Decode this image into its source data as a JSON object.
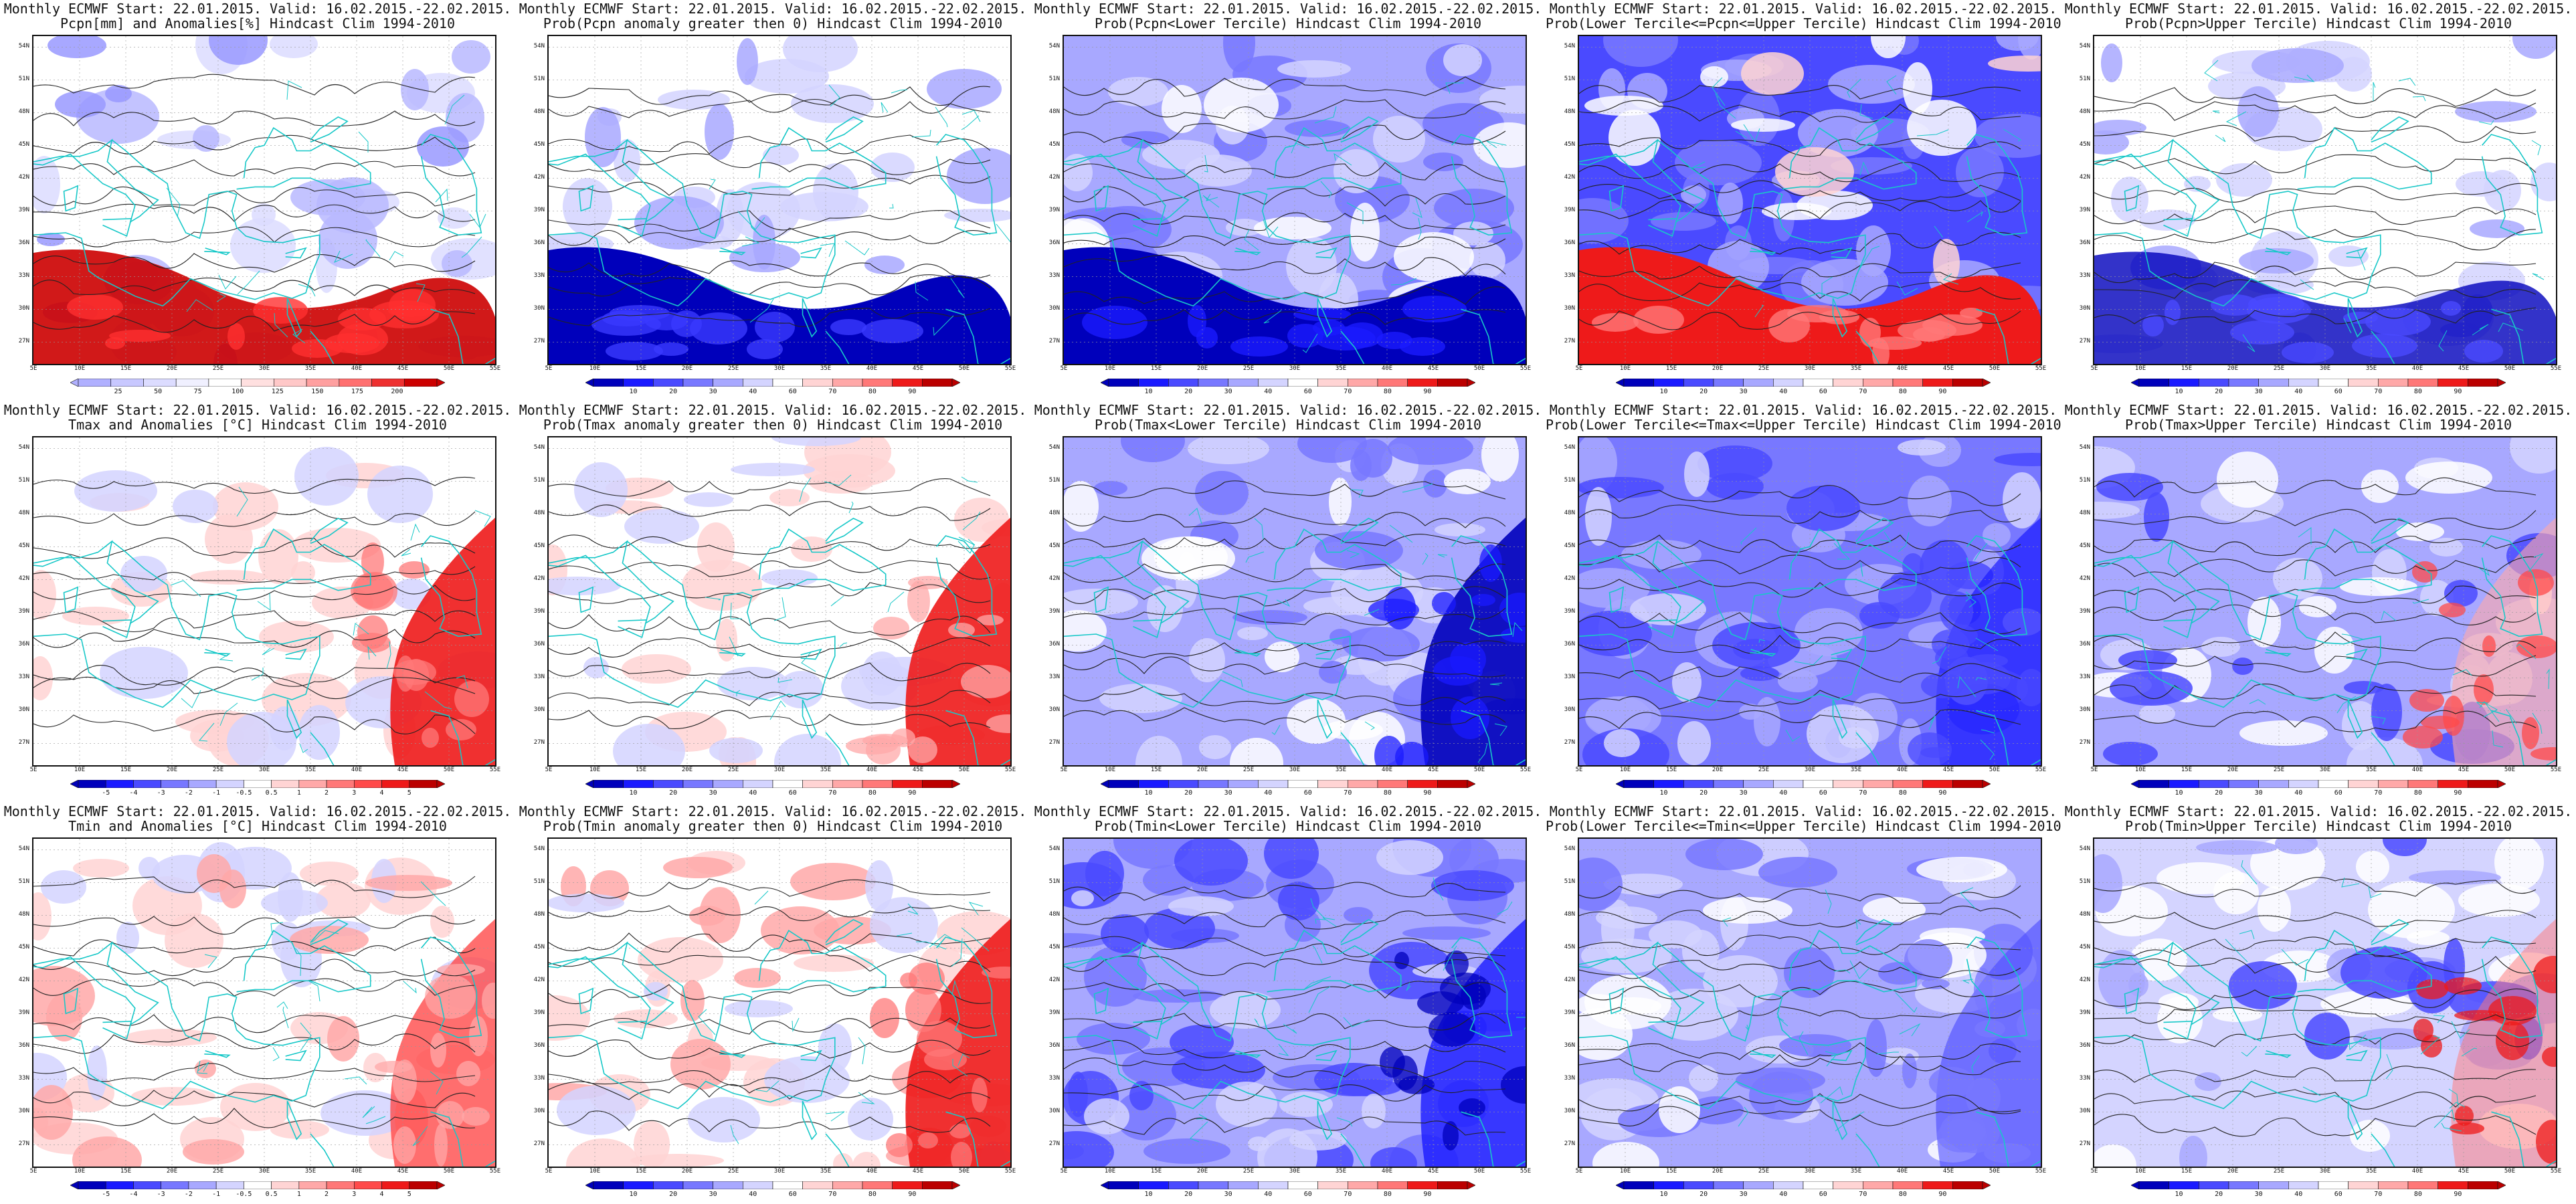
{
  "figure": {
    "lat_labels": [
      "54N",
      "51N",
      "48N",
      "45N",
      "42N",
      "39N",
      "36N",
      "33N",
      "30N",
      "27N"
    ],
    "lon_labels": [
      "5E",
      "10E",
      "15E",
      "20E",
      "25E",
      "30E",
      "35E",
      "40E",
      "45E",
      "50E",
      "55E"
    ]
  },
  "colorbars": {
    "pcpn_anom": {
      "colors": [
        "#b0b0ff",
        "#c8c8ff",
        "#dcdcff",
        "#f0f0ff",
        "#ffffff",
        "#ffe0e0",
        "#ffc8c8",
        "#ffa0a0",
        "#ff7070",
        "#ee3030",
        "#cc0000"
      ],
      "labels": [
        "25",
        "50",
        "75",
        "100",
        "125",
        "150",
        "175",
        "200"
      ]
    },
    "tanom": {
      "colors": [
        "#0000bb",
        "#1a1aff",
        "#4a4aff",
        "#7878ff",
        "#a8a8ff",
        "#d4d4ff",
        "#ffffff",
        "#ffd4d4",
        "#ffa8a8",
        "#ff7878",
        "#ff4a4a",
        "#ee1a1a",
        "#bb0000"
      ],
      "labels": [
        "-5",
        "-4",
        "-3",
        "-2",
        "-1",
        "-0.5",
        "0.5",
        "1",
        "2",
        "3",
        "4",
        "5"
      ]
    },
    "prob": {
      "colors": [
        "#0000bb",
        "#1a1aff",
        "#4a4aff",
        "#7878ff",
        "#a8a8ff",
        "#d4d4ff",
        "#ffffff",
        "#ffd4d4",
        "#ffa8a8",
        "#ff7878",
        "#ee1a1a",
        "#bb0000"
      ],
      "labels": [
        "10",
        "20",
        "30",
        "40",
        "60",
        "70",
        "80",
        "90"
      ]
    }
  },
  "panels": [
    {
      "title1": "Monthly ECMWF Start: 22.01.2015. Valid: 16.02.2015.-22.02.2015.",
      "title2": "Pcpn[mm] and Anomalies[%] Hindcast Clim 1994-2010",
      "colorbar": "pcpn_anom"
    },
    {
      "title1": "Monthly ECMWF Start: 22.01.2015. Valid: 16.02.2015.-22.02.2015.",
      "title2": "Prob(Pcpn anomaly greater then 0) Hindcast Clim 1994-2010",
      "colorbar": "prob"
    },
    {
      "title1": "Monthly ECMWF Start: 22.01.2015. Valid: 16.02.2015.-22.02.2015.",
      "title2": "Prob(Pcpn<Lower Tercile) Hindcast Clim 1994-2010",
      "colorbar": "prob"
    },
    {
      "title1": "Monthly ECMWF Start: 22.01.2015. Valid: 16.02.2015.-22.02.2015.",
      "title2": "Prob(Lower Tercile<=Pcpn<=Upper Tercile) Hindcast Clim 1994-2010",
      "colorbar": "prob"
    },
    {
      "title1": "Monthly ECMWF Start: 22.01.2015. Valid: 16.02.2015.-22.02.2015.",
      "title2": "Prob(Pcpn>Upper Tercile) Hindcast Clim 1994-2010",
      "colorbar": "prob"
    },
    {
      "title1": "Monthly ECMWF Start: 22.01.2015. Valid: 16.02.2015.-22.02.2015.",
      "title2": "Tmax and Anomalies [°C] Hindcast Clim 1994-2010",
      "colorbar": "tanom"
    },
    {
      "title1": "Monthly ECMWF Start: 22.01.2015. Valid: 16.02.2015.-22.02.2015.",
      "title2": "Prob(Tmax anomaly greater then 0) Hindcast Clim 1994-2010",
      "colorbar": "prob"
    },
    {
      "title1": "Monthly ECMWF Start: 22.01.2015. Valid: 16.02.2015.-22.02.2015.",
      "title2": "Prob(Tmax<Lower Tercile) Hindcast Clim 1994-2010",
      "colorbar": "prob"
    },
    {
      "title1": "Monthly ECMWF Start: 22.01.2015. Valid: 16.02.2015.-22.02.2015.",
      "title2": "Prob(Lower Tercile<=Tmax<=Upper Tercile) Hindcast Clim 1994-2010",
      "colorbar": "prob"
    },
    {
      "title1": "Monthly ECMWF Start: 22.01.2015. Valid: 16.02.2015.-22.02.2015.",
      "title2": "Prob(Tmax>Upper Tercile) Hindcast Clim 1994-2010",
      "colorbar": "prob"
    },
    {
      "title1": "Monthly ECMWF Start: 22.01.2015. Valid: 16.02.2015.-22.02.2015.",
      "title2": "Tmin and Anomalies [°C] Hindcast Clim 1994-2010",
      "colorbar": "tanom"
    },
    {
      "title1": "Monthly ECMWF Start: 22.01.2015. Valid: 16.02.2015.-22.02.2015.",
      "title2": "Prob(Tmin anomaly greater then 0) Hindcast Clim 1994-2010",
      "colorbar": "prob"
    },
    {
      "title1": "Monthly ECMWF Start: 22.01.2015. Valid: 16.02.2015.-22.02.2015.",
      "title2": "Prob(Tmin<Lower Tercile) Hindcast Clim 1994-2010",
      "colorbar": "prob"
    },
    {
      "title1": "Monthly ECMWF Start: 22.01.2015. Valid: 16.02.2015.-22.02.2015.",
      "title2": "Prob(Lower Tercile<=Tmin<=Upper Tercile) Hindcast Clim 1994-2010",
      "colorbar": "prob"
    },
    {
      "title1": "Monthly ECMWF Start: 22.01.2015. Valid: 16.02.2015.-22.02.2015.",
      "title2": "Prob(Tmin>Upper Tercile) Hindcast Clim 1994-2010",
      "colorbar": "prob"
    }
  ]
}
